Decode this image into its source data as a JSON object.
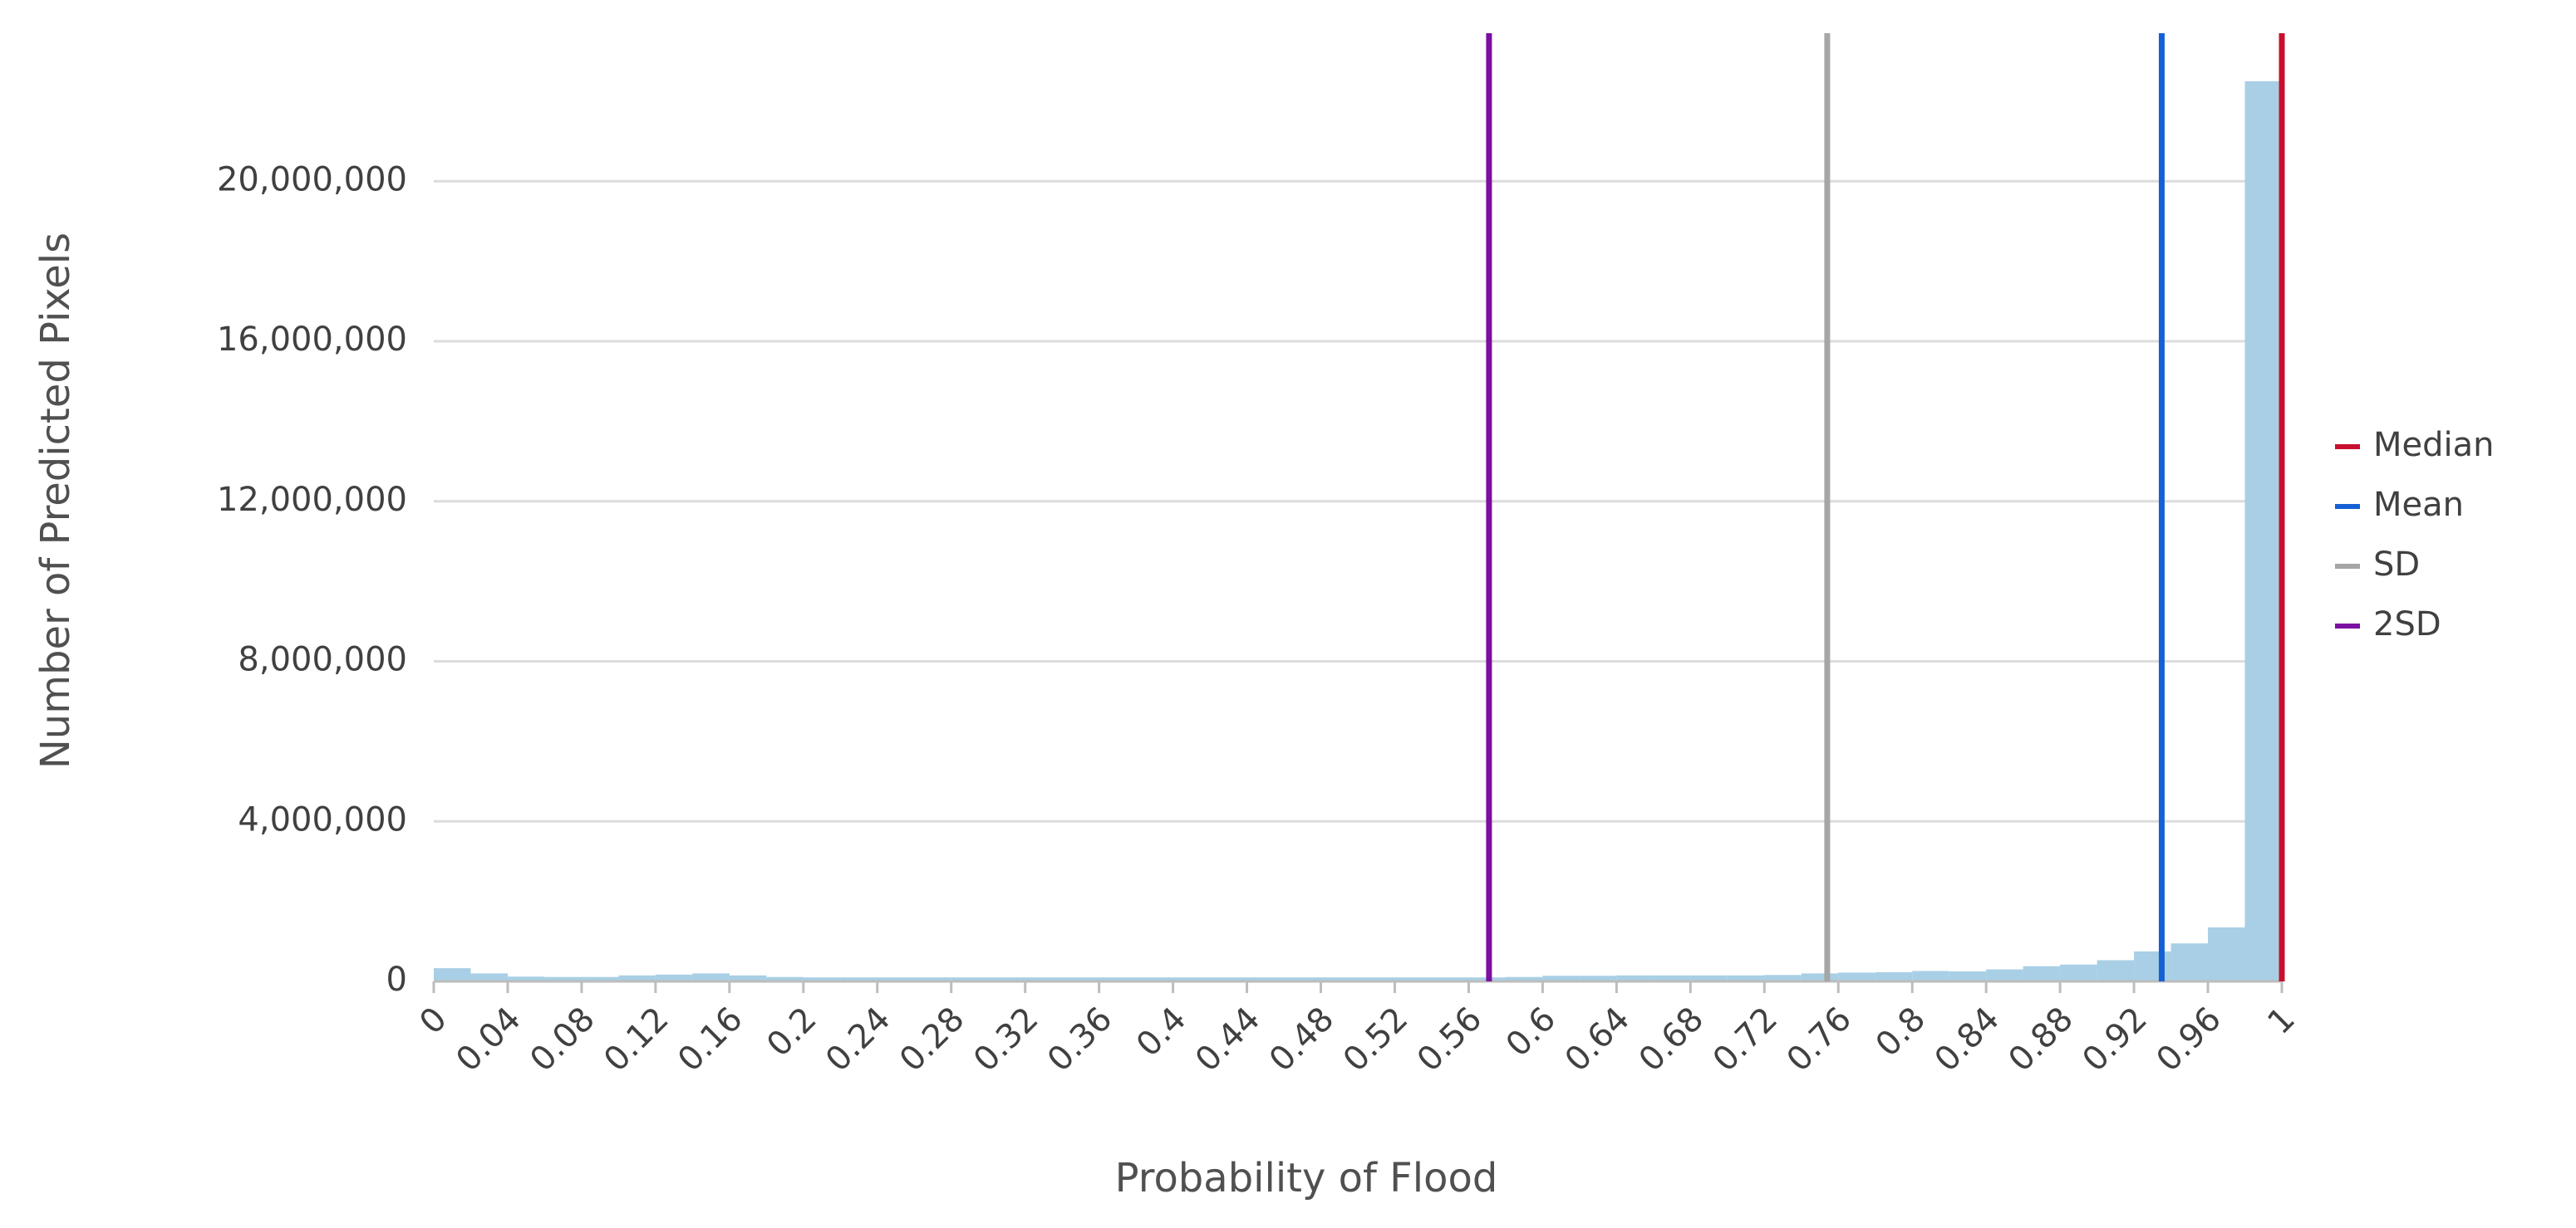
{
  "chart_data": {
    "type": "histogram",
    "x_label": "Probability of Flood",
    "y_label": "Number of Predicted Pixels",
    "bins": [
      0,
      0.02,
      0.04,
      0.06,
      0.08,
      0.1,
      0.12,
      0.14,
      0.16,
      0.18,
      0.2,
      0.22,
      0.24,
      0.26,
      0.28,
      0.3,
      0.32,
      0.34,
      0.36,
      0.38,
      0.4,
      0.42,
      0.44,
      0.46,
      0.48,
      0.5,
      0.52,
      0.54,
      0.56,
      0.58,
      0.6,
      0.62,
      0.64,
      0.66,
      0.68,
      0.7,
      0.72,
      0.74,
      0.76,
      0.78,
      0.8,
      0.82,
      0.84,
      0.86,
      0.88,
      0.9,
      0.92,
      0.94,
      0.96,
      0.98,
      1
    ],
    "values": [
      330000,
      200000,
      120000,
      110000,
      110000,
      150000,
      170000,
      200000,
      150000,
      110000,
      100000,
      100000,
      100000,
      100000,
      100000,
      100000,
      100000,
      100000,
      100000,
      100000,
      100000,
      100000,
      100000,
      100000,
      100000,
      100000,
      100000,
      100000,
      100000,
      110000,
      140000,
      140000,
      150000,
      150000,
      150000,
      150000,
      160000,
      200000,
      220000,
      230000,
      260000,
      250000,
      300000,
      380000,
      420000,
      530000,
      750000,
      950000,
      1350000,
      22500000
    ],
    "color": "#a8cfe5",
    "reference_lines": [
      {
        "name": "Median",
        "color": "#c8102e",
        "x": 1.0
      },
      {
        "name": "Mean",
        "color": "#1560d4",
        "x": 0.935
      },
      {
        "name": "SD",
        "color": "#a6a6a6",
        "x": 0.754
      },
      {
        "name": "2SD",
        "color": "#7b0fa0",
        "x": 0.571
      }
    ],
    "xlim": [
      0,
      1
    ],
    "xticks": [
      0,
      0.04,
      0.08,
      0.12,
      0.16,
      0.2,
      0.24,
      0.28,
      0.32,
      0.36,
      0.4,
      0.44,
      0.48,
      0.52,
      0.56,
      0.6,
      0.64,
      0.68,
      0.72,
      0.76,
      0.8,
      0.84,
      0.88,
      0.92,
      0.96,
      1
    ],
    "ylim": [
      0,
      23700000
    ],
    "yticks": [
      0,
      {
        "value": 4000000,
        "label": "4,000,000"
      },
      {
        "value": 8000000,
        "label": "8,000,000"
      },
      {
        "value": 12000000,
        "label": "12,000,000"
      },
      {
        "value": 16000000,
        "label": "16,000,000"
      },
      {
        "value": 20000000,
        "label": "20,000,000"
      }
    ],
    "grid": true,
    "legend": "right"
  }
}
